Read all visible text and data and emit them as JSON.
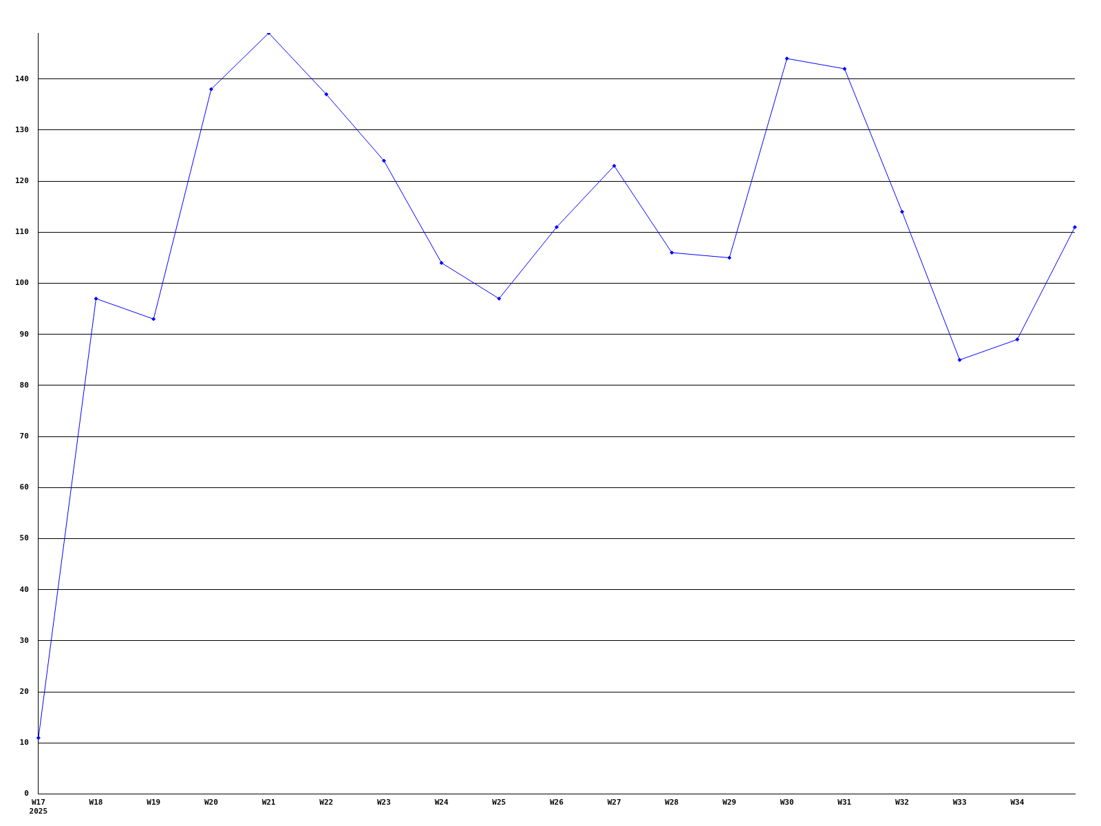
{
  "chart_data": {
    "type": "line",
    "categories": [
      "W17\n2025",
      "W18",
      "W19",
      "W20",
      "W21",
      "W22",
      "W23",
      "W24",
      "W25",
      "W26",
      "W27",
      "W28",
      "W29",
      "W30",
      "W31",
      "W32",
      "W33",
      "W34",
      null
    ],
    "series": [
      {
        "color": "#0000ff",
        "values": [
          11,
          97,
          93,
          138,
          149,
          137,
          124,
          104,
          97,
          111,
          123,
          106,
          105,
          144,
          142,
          114,
          85,
          89,
          111
        ]
      }
    ],
    "ylim": [
      0,
      149
    ],
    "yticks": [
      0,
      10,
      20,
      30,
      40,
      50,
      60,
      70,
      80,
      90,
      100,
      110,
      120,
      130,
      140
    ],
    "grid": "y",
    "legend": false,
    "marker": "diamond",
    "line_style": "solid"
  }
}
